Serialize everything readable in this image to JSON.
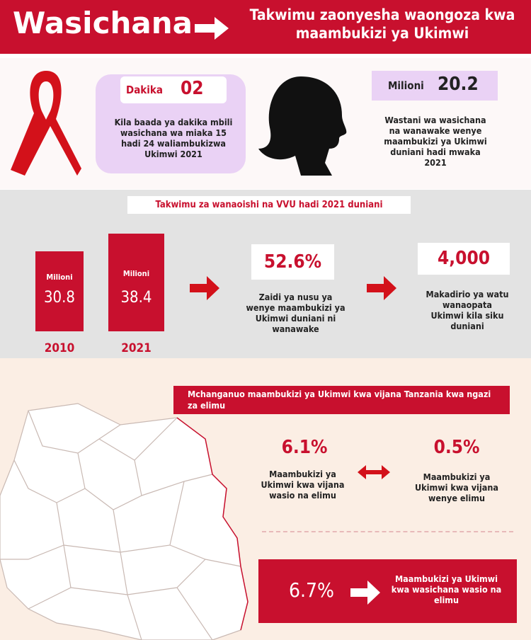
{
  "header": {
    "title": "Wasichana",
    "subtitle": "Takwimu zaonyesha waongoza kwa maambukizi ya Ukimwi"
  },
  "stats_top": {
    "left": {
      "unit": "Dakika",
      "value": "02",
      "text": "Kila baada ya dakika mbili wasichana wa miaka 15 hadi 24 waliambukizwa Ukimwi 2021"
    },
    "right": {
      "unit": "Milioni",
      "value": "20.2",
      "text": "Wastani wa wasichana na wanawake wenye maambukizi ya Ukimwi duniani hadi mwaka 2021"
    }
  },
  "global": {
    "title": "Takwimu za wanaoishi na VVU hadi 2021 duniani",
    "bars": [
      {
        "unit": "Milioni",
        "value": "30.8",
        "year": "2010"
      },
      {
        "unit": "Milioni",
        "value": "38.4",
        "year": "2021"
      }
    ],
    "women": {
      "value": "52.6%",
      "text": "Zaidi ya nusu ya wenye maambukizi ya Ukimwi duniani ni wanawake"
    },
    "daily": {
      "value": "4,000",
      "text": "Makadirio ya watu wanaopata Ukimwi kila siku duniani"
    }
  },
  "tanzania": {
    "title": "Mchanganuo maambukizi ya Ukimwi kwa vijana Tanzania kwa ngazi za elimu",
    "no_education": {
      "value": "6.1%",
      "text": "Maambukizi ya Ukimwi kwa vijana wasio na elimu"
    },
    "education": {
      "value": "0.5%",
      "text": "Maambukizi ya Ukimwi kwa vijana wenye elimu"
    },
    "girls": {
      "value": "6.7%",
      "text": "Maambukizi ya Ukimwi kwa wasichana wasio na elimu"
    }
  }
}
